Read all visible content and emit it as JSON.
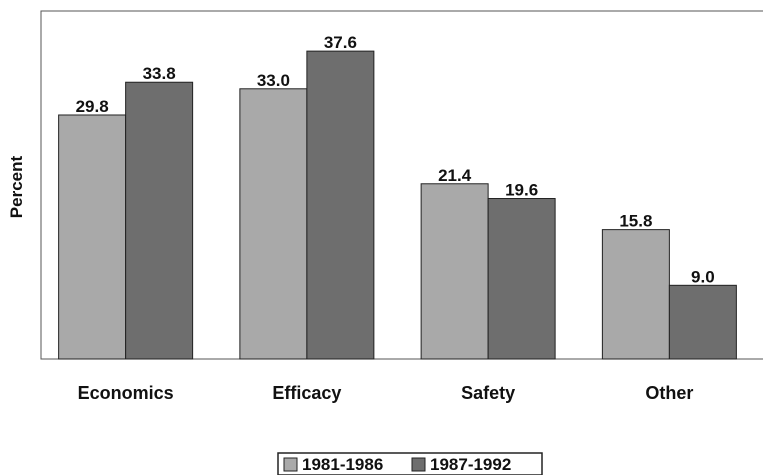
{
  "chart_data": {
    "type": "bar",
    "title": "",
    "xlabel": "",
    "ylabel": "Percent",
    "categories": [
      "Economics",
      "Efficacy",
      "Safety",
      "Other"
    ],
    "series": [
      {
        "name": "1981-1986",
        "values": [
          29.8,
          33.0,
          21.4,
          15.8
        ],
        "color": "#a9a9a9"
      },
      {
        "name": "1987-1992",
        "values": [
          33.8,
          37.6,
          19.6,
          9.0
        ],
        "color": "#6e6e6e"
      }
    ],
    "value_labels": [
      [
        "29.8",
        "33.0",
        "21.4",
        "15.8"
      ],
      [
        "33.8",
        "37.6",
        "19.6",
        "9.0"
      ]
    ],
    "ylim": [
      0,
      42.5
    ],
    "grid": false,
    "legend_position": "bottom-center"
  }
}
